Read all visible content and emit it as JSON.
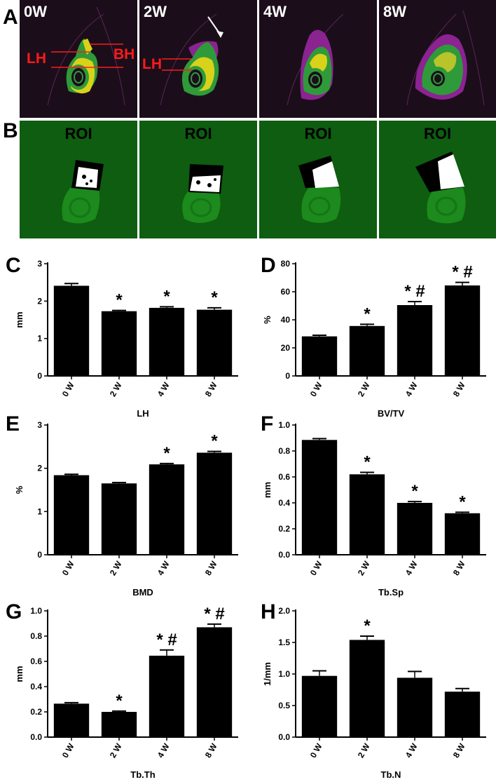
{
  "panels": {
    "A": "A",
    "B": "B",
    "C": "C",
    "D": "D",
    "E": "E",
    "F": "F",
    "G": "G",
    "H": "H"
  },
  "row_a": {
    "tiles": [
      "0W",
      "2W",
      "4W",
      "8W"
    ],
    "annotations": {
      "lh": "LH",
      "bh": "BH",
      "lh2": "LH"
    }
  },
  "row_b": {
    "roi_label": "ROI"
  },
  "colors": {
    "ct_background": "#1b0e1a",
    "ct_magenta": "#8b2391",
    "ct_bone_green": "#2f9a3a",
    "ct_bone_yellow": "#d8d21a",
    "roi_green": "#0e5d10",
    "roi_bone": "#1c8a1c",
    "annotation_red": "#ff1a1a",
    "bar": "#000000"
  },
  "chart_data": [
    {
      "id": "C",
      "type": "bar",
      "categories": [
        "0 W",
        "2 W",
        "4 W",
        "8 W"
      ],
      "values": [
        2.41,
        1.73,
        1.82,
        1.77
      ],
      "errors": [
        0.06,
        0.02,
        0.03,
        0.05
      ],
      "markers": [
        "",
        "*",
        "*",
        "*"
      ],
      "xlabel": "LH",
      "ylabel": "mm",
      "ylim": [
        0,
        3
      ],
      "yticks": [
        "0",
        "1",
        "2",
        "3"
      ]
    },
    {
      "id": "D",
      "type": "bar",
      "categories": [
        "0 W",
        "2 W",
        "4 W",
        "8 W"
      ],
      "values": [
        28.2,
        35.6,
        50.5,
        64.5
      ],
      "errors": [
        0.8,
        1.2,
        2.5,
        2.2
      ],
      "markers": [
        "",
        "*",
        "*#",
        "*#"
      ],
      "xlabel": "BV/TV",
      "ylabel": "%",
      "ylim": [
        0,
        80
      ],
      "yticks": [
        "0",
        "20",
        "40",
        "60",
        "80"
      ]
    },
    {
      "id": "E",
      "type": "bar",
      "categories": [
        "0 W",
        "2 W",
        "4 W",
        "8 W"
      ],
      "values": [
        1.84,
        1.65,
        2.09,
        2.36
      ],
      "errors": [
        0.02,
        0.02,
        0.02,
        0.03
      ],
      "markers": [
        "",
        "",
        "*",
        "*"
      ],
      "xlabel": "BMD",
      "ylabel": "%",
      "ylim": [
        0,
        3
      ],
      "yticks": [
        "0",
        "1",
        "2",
        "3"
      ]
    },
    {
      "id": "F",
      "type": "bar",
      "categories": [
        "0 W",
        "2 W",
        "4 W",
        "8 W"
      ],
      "values": [
        0.885,
        0.62,
        0.4,
        0.32
      ],
      "errors": [
        0.01,
        0.015,
        0.01,
        0.008
      ],
      "markers": [
        "",
        "*",
        "*",
        "*"
      ],
      "xlabel": "Tb.Sp",
      "ylabel": "mm",
      "ylim": [
        0,
        1.0
      ],
      "yticks": [
        "0.0",
        "0.2",
        "0.4",
        "0.6",
        "0.8",
        "1.0"
      ]
    },
    {
      "id": "G",
      "type": "bar",
      "categories": [
        "0 W",
        "2 W",
        "4 W",
        "8 W"
      ],
      "values": [
        0.265,
        0.2,
        0.645,
        0.87
      ],
      "errors": [
        0.008,
        0.006,
        0.045,
        0.025
      ],
      "markers": [
        "",
        "*",
        "*#",
        "*#"
      ],
      "xlabel": "Tb.Th",
      "ylabel": "mm",
      "ylim": [
        0,
        1.0
      ],
      "yticks": [
        "0.0",
        "0.2",
        "0.4",
        "0.6",
        "0.8",
        "1.0"
      ]
    },
    {
      "id": "H",
      "type": "bar",
      "categories": [
        "0 W",
        "2 W",
        "4 W",
        "8 W"
      ],
      "values": [
        0.97,
        1.54,
        0.94,
        0.72
      ],
      "errors": [
        0.08,
        0.06,
        0.1,
        0.05
      ],
      "markers": [
        "",
        "*",
        "",
        ""
      ],
      "xlabel": "Tb.N",
      "ylabel": "1/mm",
      "ylim": [
        0,
        2.0
      ],
      "yticks": [
        "0.0",
        "0.5",
        "1.0",
        "1.5",
        "2.0"
      ]
    }
  ]
}
